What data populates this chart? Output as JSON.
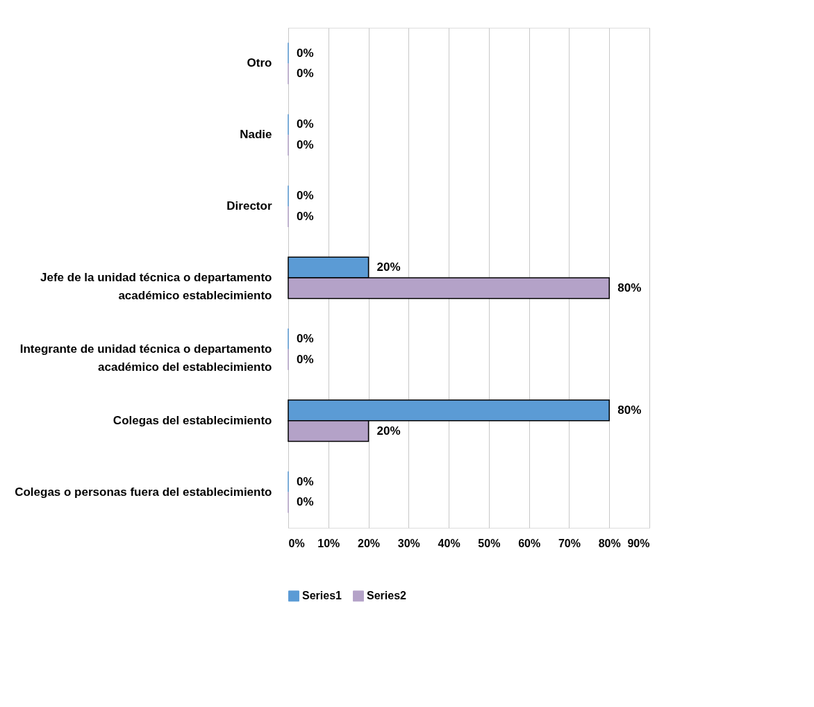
{
  "chart_data": {
    "type": "bar",
    "orientation": "horizontal",
    "categories": [
      "Otro",
      "Nadie",
      "Director",
      "Jefe de la unidad técnica o departamento académico establecimiento",
      "Integrante de unidad técnica o departamento académico del establecimiento",
      "Colegas del establecimiento",
      "Colegas o personas fuera del establecimiento"
    ],
    "series": [
      {
        "name": "Series1",
        "color": "#5b9bd5",
        "values": [
          0,
          0,
          0,
          20,
          0,
          80,
          0
        ],
        "value_labels": [
          "0%",
          "0%",
          "0%",
          "20%",
          "0%",
          "80%",
          "0%"
        ]
      },
      {
        "name": "Series2",
        "color": "#b4a2c8",
        "values": [
          0,
          0,
          0,
          80,
          0,
          20,
          0
        ],
        "value_labels": [
          "0%",
          "0%",
          "0%",
          "80%",
          "0%",
          "20%",
          "0%"
        ]
      }
    ],
    "xlim": [
      0,
      90
    ],
    "xticks": [
      {
        "value": 0,
        "label": "0%"
      },
      {
        "value": 10,
        "label": "10%"
      },
      {
        "value": 20,
        "label": "20%"
      },
      {
        "value": 30,
        "label": "30%"
      },
      {
        "value": 40,
        "label": "40%"
      },
      {
        "value": 50,
        "label": "50%"
      },
      {
        "value": 60,
        "label": "60%"
      },
      {
        "value": 70,
        "label": "70%"
      },
      {
        "value": 80,
        "label": "80%"
      },
      {
        "value": 90,
        "label": "90%"
      }
    ],
    "grid": "x",
    "legend": "bottom"
  }
}
